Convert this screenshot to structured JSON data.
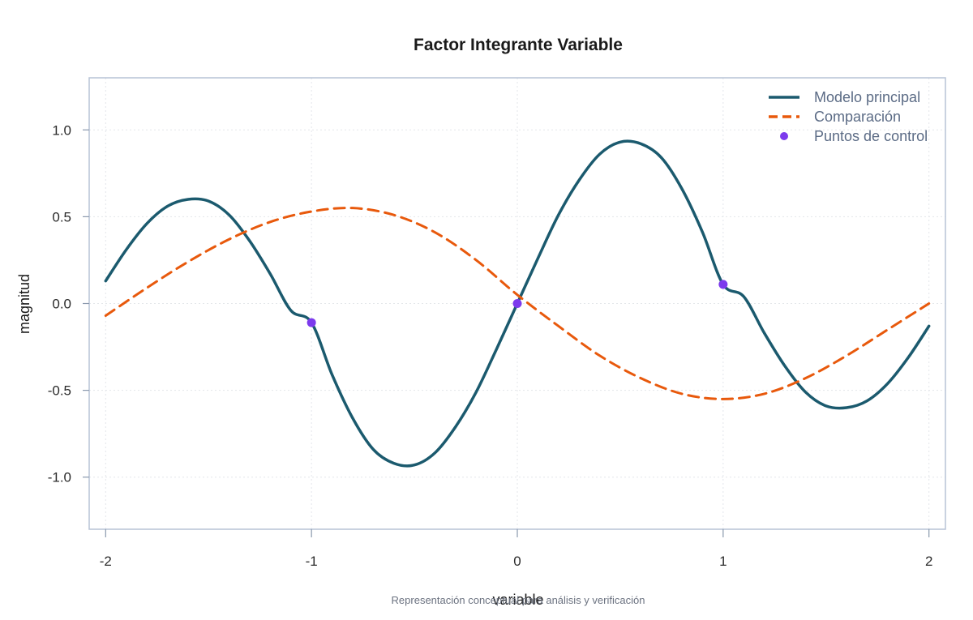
{
  "chart_data": {
    "type": "line",
    "title": "Factor Integrante Variable",
    "xlabel": "variable",
    "ylabel": "magnitud",
    "caption": "Representación conceptual para análisis y verificación",
    "xlim": [
      -2.08,
      2.08
    ],
    "ylim": [
      -1.3,
      1.3
    ],
    "x_ticks": [
      -2,
      -1,
      0,
      1,
      2
    ],
    "x_tick_labels": [
      "-2",
      "-1",
      "0",
      "1",
      "2"
    ],
    "y_ticks": [
      -1.0,
      -0.5,
      0.0,
      0.5,
      1.0
    ],
    "y_tick_labels": [
      "-1.0",
      "-0.5",
      "0.0",
      "0.5",
      "1.0"
    ],
    "grid": true,
    "legend_position": "top-right",
    "series": [
      {
        "name": "Modelo principal",
        "style": "solid",
        "color": "#1b5a6e",
        "x": [
          -2.0,
          -1.9,
          -1.8,
          -1.7,
          -1.6,
          -1.5,
          -1.4,
          -1.3,
          -1.2,
          -1.1,
          -1.0,
          -0.9,
          -0.8,
          -0.7,
          -0.6,
          -0.5,
          -0.4,
          -0.3,
          -0.2,
          -0.1,
          0.0,
          0.1,
          0.2,
          0.3,
          0.4,
          0.5,
          0.6,
          0.7,
          0.8,
          0.9,
          1.0,
          1.1,
          1.2,
          1.3,
          1.4,
          1.5,
          1.6,
          1.7,
          1.8,
          1.9,
          2.0
        ],
        "y": [
          0.13,
          0.31,
          0.46,
          0.56,
          0.6,
          0.59,
          0.51,
          0.36,
          0.17,
          -0.04,
          -0.11,
          -0.41,
          -0.66,
          -0.84,
          -0.92,
          -0.93,
          -0.86,
          -0.71,
          -0.51,
          -0.26,
          0.0,
          0.26,
          0.51,
          0.71,
          0.86,
          0.93,
          0.92,
          0.84,
          0.66,
          0.41,
          0.11,
          0.04,
          -0.17,
          -0.36,
          -0.51,
          -0.59,
          -0.6,
          -0.56,
          -0.46,
          -0.31,
          -0.13
        ]
      },
      {
        "name": "Comparación",
        "style": "dashed",
        "color": "#e8590c",
        "x": [
          -2.0,
          -1.8,
          -1.6,
          -1.4,
          -1.2,
          -1.0,
          -0.8,
          -0.6,
          -0.4,
          -0.2,
          0.0,
          0.2,
          0.4,
          0.6,
          0.8,
          1.0,
          1.2,
          1.4,
          1.6,
          1.8,
          2.0
        ],
        "y": [
          -0.07,
          0.09,
          0.24,
          0.37,
          0.47,
          0.53,
          0.55,
          0.51,
          0.41,
          0.25,
          0.05,
          -0.13,
          -0.3,
          -0.43,
          -0.52,
          -0.55,
          -0.52,
          -0.43,
          -0.3,
          -0.15,
          0.0
        ]
      },
      {
        "name": "Puntos de control",
        "style": "points",
        "color": "#7c3aed",
        "x": [
          -1.0,
          0.0,
          1.0
        ],
        "y": [
          -0.11,
          0.0,
          0.11
        ]
      }
    ]
  }
}
